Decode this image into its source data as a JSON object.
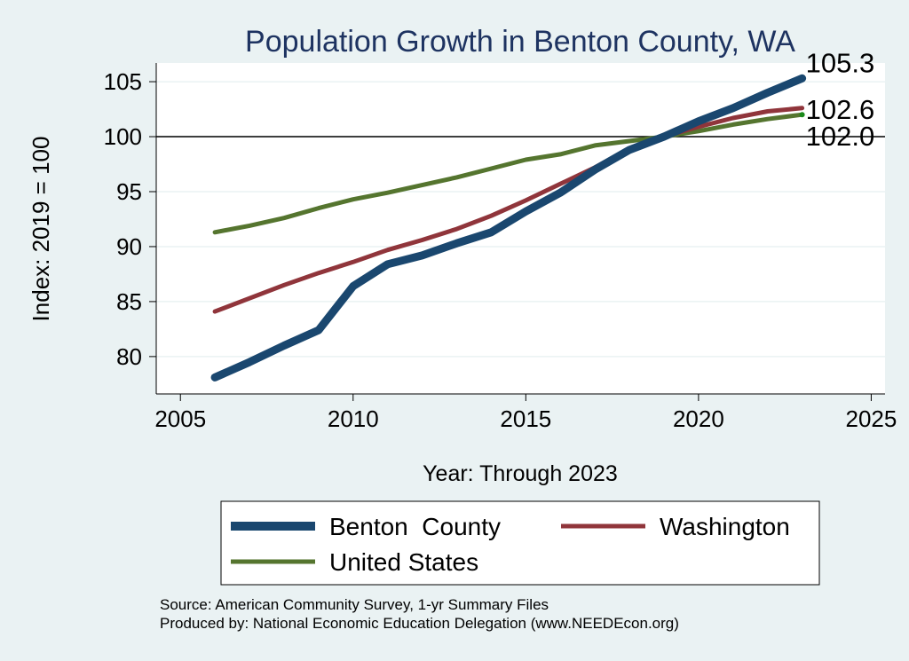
{
  "chart_data": {
    "type": "line",
    "title": "Population Growth in Benton County, WA",
    "xlabel": "Year: Through 2023",
    "ylabel": "Index: 2019 = 100",
    "xlim": [
      2004.3,
      2025.4
    ],
    "ylim": [
      76.6,
      106.7
    ],
    "x_ticks": [
      2005,
      2010,
      2015,
      2020,
      2025
    ],
    "y_ticks": [
      80,
      85,
      90,
      95,
      100,
      105
    ],
    "reference_line": 100,
    "grid": true,
    "legend_position": "bottom",
    "x": [
      2006,
      2007,
      2008,
      2009,
      2010,
      2011,
      2012,
      2013,
      2014,
      2015,
      2016,
      2017,
      2018,
      2019,
      2020,
      2021,
      2022,
      2023
    ],
    "series": [
      {
        "name": "Benton  County",
        "color": "#1a476f",
        "values": [
          78.1,
          79.5,
          81.0,
          82.4,
          86.4,
          88.4,
          89.2,
          90.3,
          91.3,
          93.2,
          94.9,
          97.0,
          98.8,
          100.0,
          101.4,
          102.6,
          104.0,
          105.3
        ],
        "end_label": "105.3"
      },
      {
        "name": "Washington",
        "color": "#90353b",
        "values": [
          84.1,
          85.3,
          86.5,
          87.6,
          88.6,
          89.7,
          90.6,
          91.6,
          92.8,
          94.2,
          95.7,
          97.2,
          98.9,
          100.0,
          100.9,
          101.7,
          102.3,
          102.6
        ],
        "end_label": "102.6"
      },
      {
        "name": "United States",
        "color": "#55752f",
        "values": [
          91.3,
          91.9,
          92.6,
          93.5,
          94.3,
          94.9,
          95.6,
          96.3,
          97.1,
          97.9,
          98.4,
          99.2,
          99.6,
          100.0,
          100.5,
          101.1,
          101.6,
          102.0
        ],
        "end_label": "102.0"
      }
    ],
    "source_line1": "Source: American Community Survey, 1-yr Summary Files",
    "source_line2": "Produced by: National Economic Education Delegation (www.NEEDEcon.org)"
  }
}
